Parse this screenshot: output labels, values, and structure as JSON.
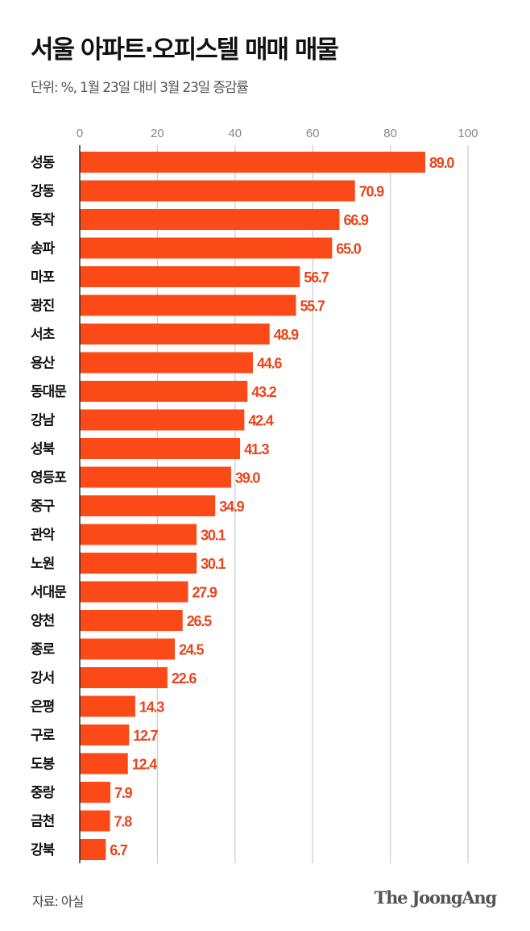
{
  "chart_data": {
    "type": "bar",
    "orientation": "horizontal",
    "title": "서울 아파트·오피스텔 매매 매물",
    "subtitle": "단위: %, 1월 23일 대비 3월 23일 증감률",
    "categories": [
      "성동",
      "강동",
      "동작",
      "송파",
      "마포",
      "광진",
      "서초",
      "용산",
      "동대문",
      "강남",
      "성북",
      "영등포",
      "중구",
      "관악",
      "노원",
      "서대문",
      "양천",
      "종로",
      "강서",
      "은평",
      "구로",
      "도봉",
      "중랑",
      "금천",
      "강북"
    ],
    "values": [
      89.0,
      70.9,
      66.9,
      65.0,
      56.7,
      55.7,
      48.9,
      44.6,
      43.2,
      42.4,
      41.3,
      39.0,
      34.9,
      30.1,
      30.1,
      27.9,
      26.5,
      24.5,
      22.6,
      14.3,
      12.7,
      12.4,
      7.9,
      7.8,
      6.7
    ],
    "value_labels": [
      "89.0",
      "70.9",
      "66.9",
      "65.0",
      "56.7",
      "55.7",
      "48.9",
      "44.6",
      "43.2",
      "42.4",
      "41.3",
      "39.0",
      "34.9",
      "30.1",
      "30.1",
      "27.9",
      "26.5",
      "24.5",
      "22.6",
      "14.3",
      "12.7",
      "12.4",
      "7.9",
      "7.8",
      "6.7"
    ],
    "xlim": [
      0,
      100
    ],
    "xticks": [
      "0",
      "20",
      "40",
      "60",
      "80",
      "100"
    ],
    "axis_position": "top",
    "grid": true,
    "bar_color": "#fb4a17",
    "label_color": "#e8451c"
  },
  "footer": {
    "source": "자료: 아실",
    "logo": "The JoongAng"
  }
}
